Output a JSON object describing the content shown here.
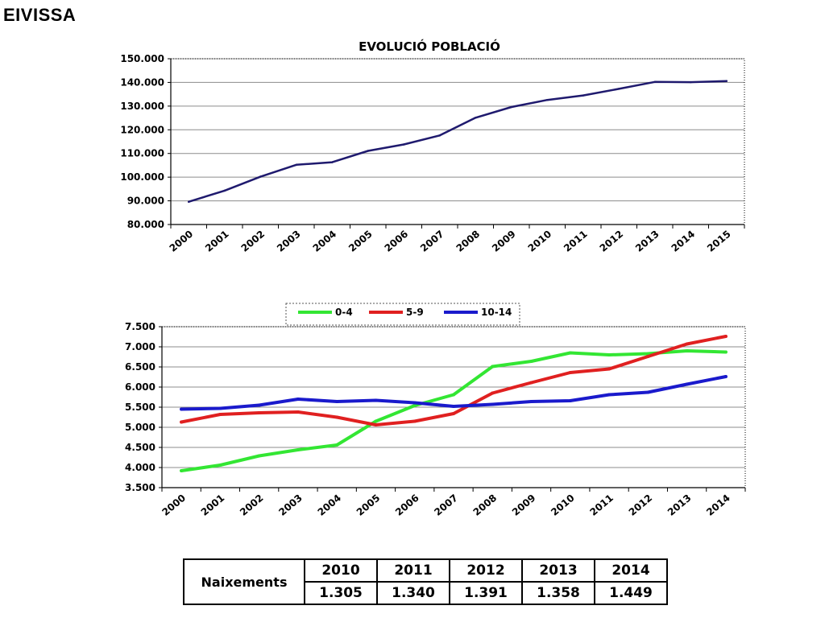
{
  "page_title": "EIVISSA",
  "chart_data": [
    {
      "type": "line",
      "title": "EVOLUCIÓ POBLACIÓ",
      "categories": [
        "2000",
        "2001",
        "2002",
        "2003",
        "2004",
        "2005",
        "2006",
        "2007",
        "2008",
        "2009",
        "2010",
        "2011",
        "2012",
        "2013",
        "2014",
        "2015"
      ],
      "series": [
        {
          "name": "",
          "color": "#1f1a6e",
          "values": [
            89600,
            94300,
            100200,
            105200,
            106300,
            111100,
            113800,
            117600,
            125100,
            129600,
            132600,
            134500,
            137300,
            140200,
            140100,
            140600
          ]
        }
      ],
      "ylim": [
        80000,
        150000
      ],
      "yticks": [
        "80.000",
        "90.000",
        "100.000",
        "110.000",
        "120.000",
        "130.000",
        "140.000",
        "150.000"
      ],
      "grid": true,
      "xlabel": "",
      "ylabel": ""
    },
    {
      "type": "line",
      "title": "",
      "categories": [
        "2000",
        "2001",
        "2002",
        "2003",
        "2004",
        "2005",
        "2006",
        "2007",
        "2008",
        "2009",
        "2010",
        "2011",
        "2012",
        "2013",
        "2014"
      ],
      "series": [
        {
          "name": "0-4",
          "color": "#33e633",
          "values": [
            3920,
            4060,
            4290,
            4440,
            4560,
            5150,
            5540,
            5810,
            6510,
            6640,
            6850,
            6800,
            6830,
            6900,
            6870
          ]
        },
        {
          "name": "5-9",
          "color": "#e02020",
          "values": [
            5130,
            5320,
            5360,
            5380,
            5250,
            5060,
            5150,
            5340,
            5850,
            6110,
            6360,
            6450,
            6760,
            7070,
            7260
          ]
        },
        {
          "name": "10-14",
          "color": "#1a1acc",
          "values": [
            5450,
            5470,
            5550,
            5700,
            5640,
            5670,
            5610,
            5520,
            5570,
            5640,
            5660,
            5810,
            5870,
            6070,
            6260
          ]
        }
      ],
      "ylim": [
        3500,
        7500
      ],
      "yticks": [
        "3.500",
        "4.000",
        "4.500",
        "5.000",
        "5.500",
        "6.000",
        "6.500",
        "7.000",
        "7.500"
      ],
      "grid": true,
      "legend": "top",
      "xlabel": "",
      "ylabel": ""
    }
  ],
  "births_table": {
    "header": "Naixements",
    "years": [
      "2010",
      "2011",
      "2012",
      "2013",
      "2014"
    ],
    "values": [
      "1.305",
      "1.340",
      "1.391",
      "1.358",
      "1.449"
    ]
  }
}
